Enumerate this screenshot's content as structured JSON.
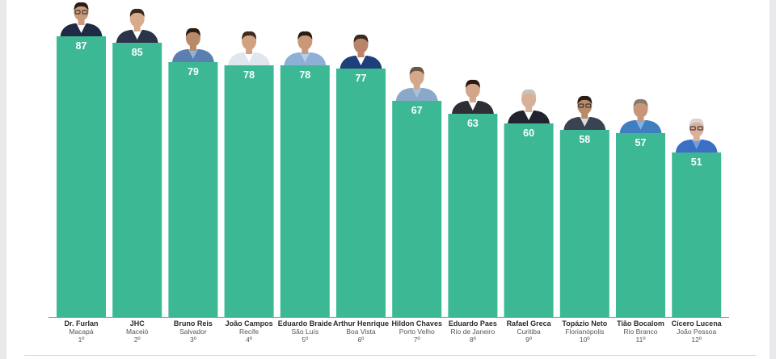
{
  "chart_data": {
    "type": "bar",
    "categories": [
      "Dr. Furlan",
      "JHC",
      "Bruno Reis",
      "João Campos",
      "Eduardo Braide",
      "Arthur Henrique",
      "Hildon Chaves",
      "Eduardo Paes",
      "Rafael Greca",
      "Topázio Neto",
      "Tião Bocalom",
      "Cícero Lucena"
    ],
    "cities": [
      "Macapá",
      "Maceió",
      "Salvador",
      "Recife",
      "São Luís",
      "Boa Vista",
      "Porto Velho",
      "Rio de Janeiro",
      "Curitiba",
      "Florianópolis",
      "Rio Branco",
      "João Pessoa"
    ],
    "ranks": [
      "1º",
      "2º",
      "3º",
      "4º",
      "5º",
      "6º",
      "7º",
      "8º",
      "9º",
      "10º",
      "11º",
      "12º"
    ],
    "values": [
      87,
      85,
      79,
      78,
      78,
      77,
      67,
      63,
      60,
      58,
      57,
      51
    ],
    "title": "",
    "xlabel": "",
    "ylabel": "",
    "ylim": [
      0,
      100
    ],
    "grid": false,
    "legend": "none",
    "bar_color": "#3cb895",
    "axis_color": "#9a9a9a"
  },
  "portraits": [
    {
      "suit": "#1f2a44",
      "shirt": "#ffffff",
      "skin": "#c99a7a",
      "hair": "#2a1c14",
      "glasses": true
    },
    {
      "suit": "#2b3348",
      "shirt": "#ffffff",
      "skin": "#d8ab8c",
      "hair": "#3b2a1e",
      "glasses": false
    },
    {
      "suit": "#5a7fb0",
      "shirt": "#8fb3dc",
      "skin": "#b98a6a",
      "hair": "#2a1c14",
      "glasses": false
    },
    {
      "suit": "#dfe6ee",
      "shirt": "#ffffff",
      "skin": "#d0a282",
      "hair": "#3b2a1e",
      "glasses": false
    },
    {
      "suit": "#8fb0d6",
      "shirt": "#b7cfe8",
      "skin": "#c89878",
      "hair": "#2a1c14",
      "glasses": false
    },
    {
      "suit": "#1f3f7a",
      "shirt": "#ffffff",
      "skin": "#b98468",
      "hair": "#3a2a20",
      "glasses": false
    },
    {
      "suit": "#8aa9c9",
      "shirt": "#a8c2de",
      "skin": "#d4a88a",
      "hair": "#6b5544",
      "glasses": false
    },
    {
      "suit": "#2e2e35",
      "shirt": "#ffffff",
      "skin": "#d3a58a",
      "hair": "#2a1c14",
      "glasses": false
    },
    {
      "suit": "#1f2430",
      "shirt": "#ffffff",
      "skin": "#d8b098",
      "hair": "#c9c2b8",
      "glasses": false
    },
    {
      "suit": "#3a4352",
      "shirt": "#dcdcdc",
      "skin": "#b98a6a",
      "hair": "#2a1c14",
      "glasses": true
    },
    {
      "suit": "#3f7fc0",
      "shirt": "#7fb2e4",
      "skin": "#c8967a",
      "hair": "#8a7a6a",
      "glasses": false
    },
    {
      "suit": "#3a6fc4",
      "shirt": "#6c9fe0",
      "skin": "#d9b09a",
      "hair": "#d9d4ce",
      "glasses": true
    }
  ]
}
